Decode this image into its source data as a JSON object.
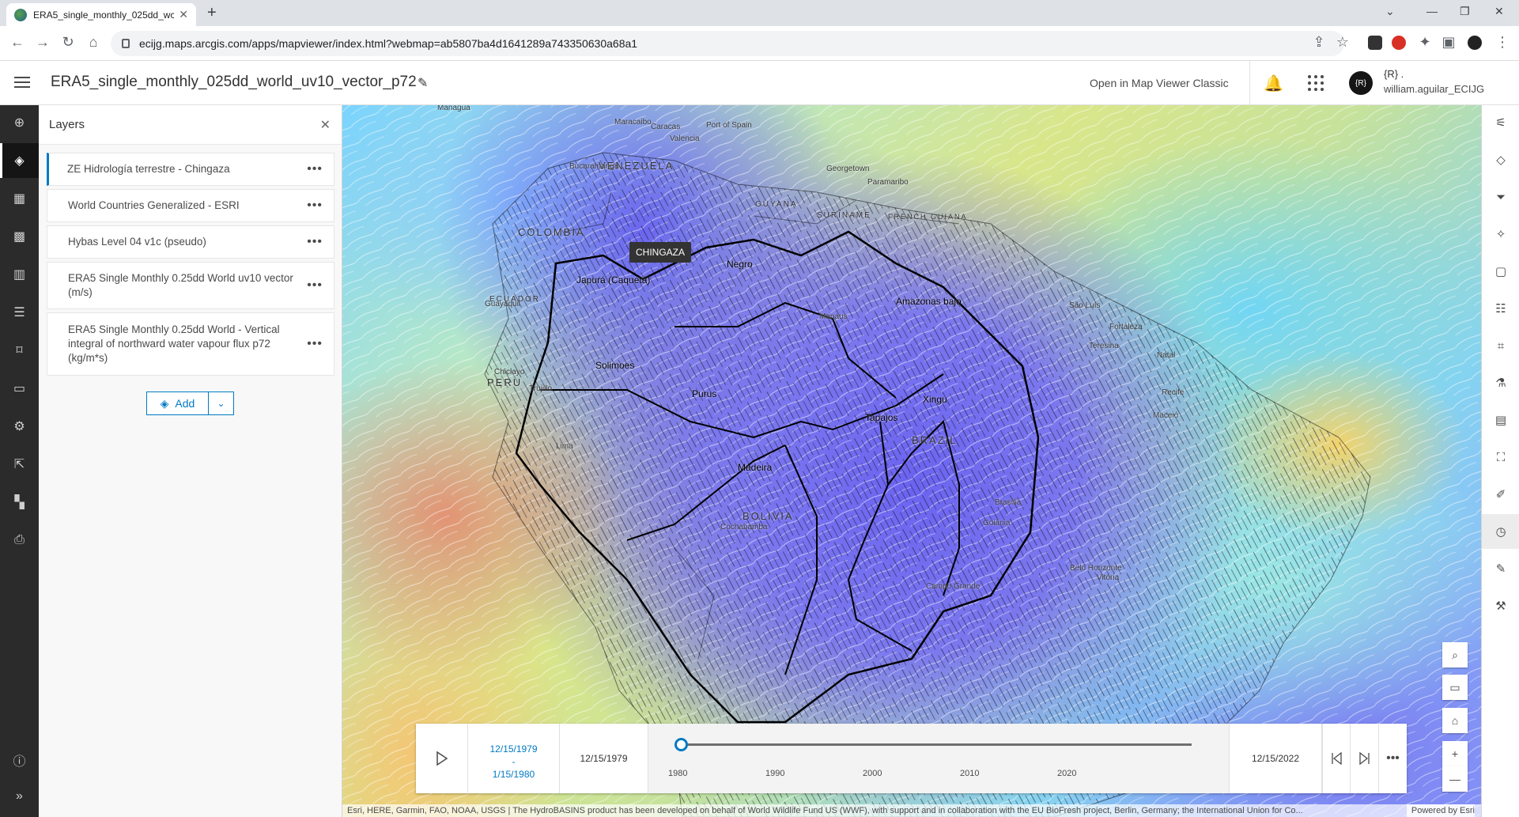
{
  "browser": {
    "tab_title": "ERA5_single_monthly_025dd_wc",
    "url": "ecijg.maps.arcgis.com/apps/mapviewer/index.html?webmap=ab5807ba4d1641289a743350630a68a1"
  },
  "header": {
    "title": "ERA5_single_monthly_025dd_world_uv10_vector_p72",
    "open_classic": "Open in Map Viewer Classic",
    "avatar_text": "{R}",
    "user_line1": "{R} .",
    "user_line2": "william.aguilar_ECIJG"
  },
  "panel": {
    "title": "Layers",
    "layers": [
      {
        "label": "ZE Hidrología terrestre - Chingaza"
      },
      {
        "label": "World Countries Generalized - ESRI"
      },
      {
        "label": "Hybas Level 04 v1c (pseudo)"
      },
      {
        "label": "ERA5 Single Monthly 0.25dd World uv10 vector (m/s)"
      },
      {
        "label": "ERA5 Single Monthly 0.25dd World - Vertical integral of northward water vapour flux p72 (kg/m*s)"
      }
    ],
    "add_label": "Add"
  },
  "map": {
    "popup_label": "CHINGAZA",
    "countries": [
      "VENEZUELA",
      "COLOMBIA",
      "PERU",
      "BOLIVIA",
      "BRAZIL",
      "ECUADOR",
      "GUYANA",
      "SURINAME",
      "FRENCH GUIANA"
    ],
    "basins": [
      "Negro",
      "Japurá (Caquetá)",
      "Amazonas bajo",
      "Solimoes",
      "Purus",
      "Xingu",
      "Tapajos",
      "Madeira"
    ],
    "cities": [
      "Managua",
      "Maracaibo",
      "Caracas",
      "Bucaramanga",
      "Georgetown",
      "Paramaribo",
      "Guayaquil",
      "Chiclayo",
      "Trujillo",
      "Lima",
      "Manaus",
      "São Luís",
      "Fortaleza",
      "Teresina",
      "Natal",
      "Recife",
      "Maceió",
      "Brasília",
      "Goiânia",
      "Belo Horizonte",
      "Vitória",
      "Campo Grande",
      "Cochabamba",
      "Port of Spain",
      "Valencia"
    ],
    "attribution": "Esri, HERE, Garmin, FAO, NOAA, USGS | The HydroBASINS product has been developed on behalf of World Wildlife Fund US (WWF), with support and in collaboration with the EU BioFresh project, Berlin, Germany; the International Union for Co...",
    "powered_by": "Powered by Esri"
  },
  "time_slider": {
    "range_start": "12/15/1979",
    "range_sep": "-",
    "range_end": "1/15/1980",
    "start_date": "12/15/1979",
    "end_date": "12/15/2022",
    "ticks": [
      "1980",
      "1990",
      "2000",
      "2010",
      "2020"
    ],
    "position": 0
  },
  "left_toolbar": [
    "add-icon",
    "layers-icon",
    "table-icon",
    "basemap-icon",
    "charts-icon",
    "legend-icon",
    "bookmarks-icon",
    "media-icon",
    "settings-icon",
    "save-icon",
    "apps-icon",
    "print-icon",
    "info-icon",
    "expand-icon"
  ],
  "right_toolbar": [
    "properties-icon",
    "styles-icon",
    "filter-icon",
    "effects-icon",
    "popups-icon",
    "fields-icon",
    "labels-icon",
    "analysis-icon",
    "configure-icon",
    "measure-icon",
    "sketch-icon",
    "time-icon",
    "edit-icon",
    "tools-icon"
  ]
}
